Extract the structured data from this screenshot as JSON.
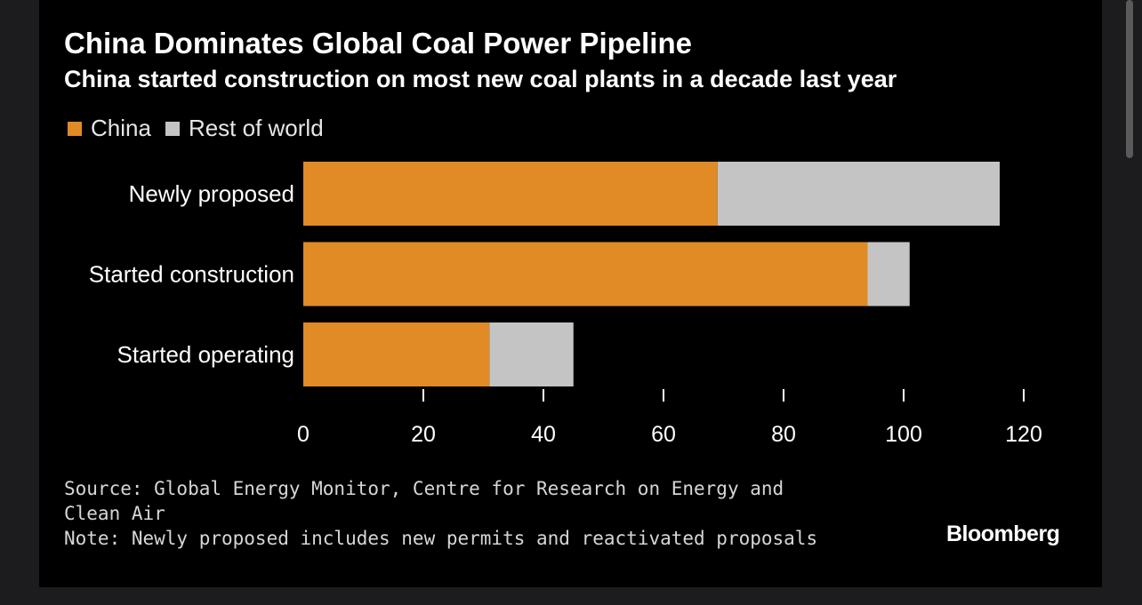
{
  "title": "China Dominates Global Coal Power Pipeline",
  "subtitle": "China started construction on most new coal plants in a decade last year",
  "legend": [
    {
      "label": "China",
      "color": "#e08b26"
    },
    {
      "label": "Rest of world",
      "color": "#c4c4c4"
    }
  ],
  "footer": {
    "source_line1": "Source: Global Energy Monitor, Centre for Research on Energy and",
    "source_line2": "Clean Air",
    "note": "Note: Newly proposed includes new permits and reactivated proposals",
    "brand": "Bloomberg"
  },
  "chart_data": {
    "type": "bar",
    "orientation": "horizontal",
    "stacked": true,
    "categories": [
      "Newly proposed",
      "Started construction",
      "Started operating"
    ],
    "series": [
      {
        "name": "China",
        "color": "#e08b26",
        "values": [
          69,
          94,
          31
        ]
      },
      {
        "name": "Rest of world",
        "color": "#c4c4c4",
        "values": [
          47,
          7,
          14
        ]
      }
    ],
    "xlim": [
      0,
      120
    ],
    "xticks": [
      0,
      20,
      40,
      60,
      80,
      100,
      120
    ],
    "grid": false,
    "legend_position": "top-left"
  }
}
